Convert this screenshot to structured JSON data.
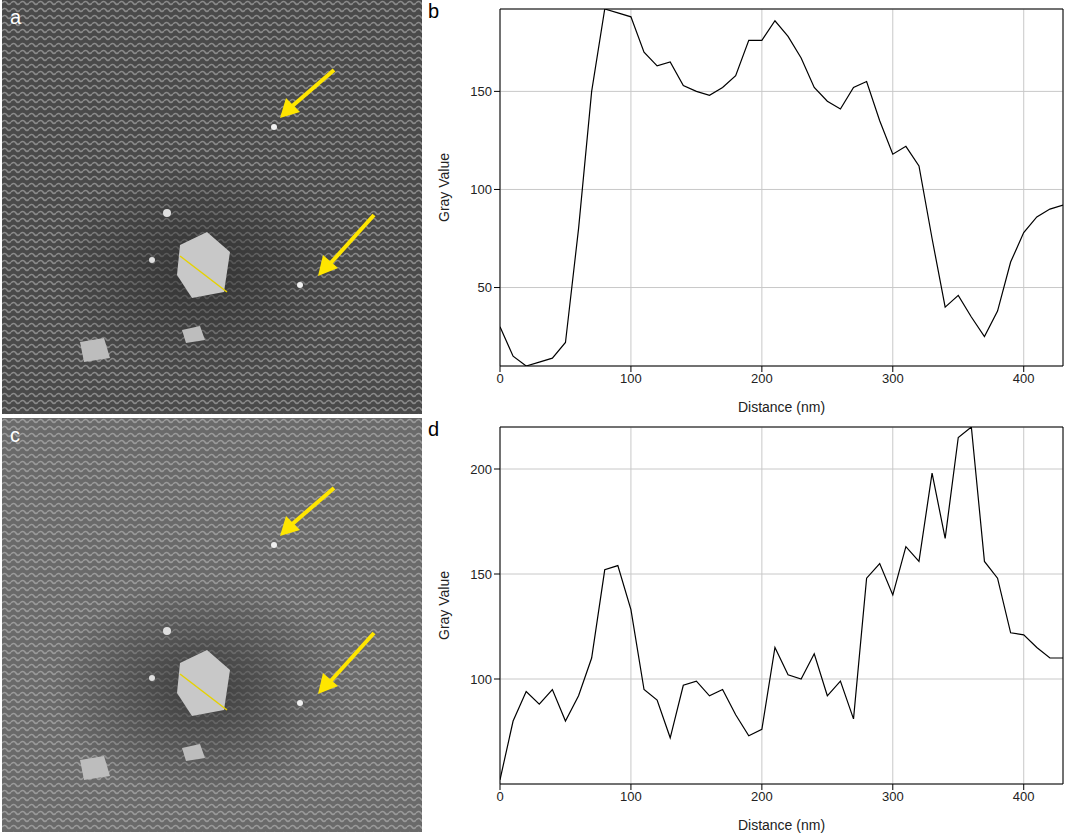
{
  "image_panels": [
    {
      "panel_label": "a"
    },
    {
      "panel_label": "c"
    }
  ],
  "chart_data": [
    {
      "panel_label": "b",
      "type": "line",
      "x_label": "Distance (nm)",
      "y_label": "Gray Value",
      "x": [
        0,
        10,
        20,
        30,
        40,
        50,
        60,
        70,
        80,
        90,
        100,
        110,
        120,
        130,
        140,
        150,
        160,
        170,
        180,
        190,
        200,
        210,
        220,
        230,
        240,
        250,
        260,
        270,
        280,
        290,
        300,
        310,
        320,
        330,
        340,
        350,
        360,
        370,
        380,
        390,
        400,
        410,
        420,
        430
      ],
      "values": [
        30,
        15,
        10,
        12,
        14,
        22,
        80,
        150,
        192,
        190,
        188,
        170,
        163,
        165,
        153,
        150,
        148,
        152,
        158,
        176,
        176,
        186,
        178,
        167,
        152,
        145,
        141,
        152,
        155,
        135,
        118,
        122,
        112,
        75,
        40,
        46,
        35,
        25,
        38,
        63,
        78,
        86,
        90,
        92
      ],
      "color": "#000000",
      "xlim": [
        0,
        430
      ],
      "xticks": [
        0,
        100,
        200,
        300,
        400
      ],
      "ylim": [
        10,
        192
      ],
      "yticks": [
        50,
        100,
        150
      ],
      "grid": true
    },
    {
      "panel_label": "d",
      "type": "line",
      "x_label": "Distance (nm)",
      "y_label": "Gray Value",
      "x": [
        0,
        10,
        20,
        30,
        40,
        50,
        60,
        70,
        80,
        90,
        100,
        110,
        120,
        130,
        140,
        150,
        160,
        170,
        180,
        190,
        200,
        210,
        220,
        230,
        240,
        250,
        260,
        270,
        280,
        290,
        300,
        310,
        320,
        330,
        340,
        350,
        360,
        370,
        380,
        390,
        400,
        410,
        420,
        430
      ],
      "values": [
        52,
        80,
        94,
        88,
        95,
        80,
        92,
        110,
        152,
        154,
        133,
        95,
        90,
        72,
        97,
        99,
        92,
        95,
        83,
        73,
        76,
        115,
        102,
        100,
        112,
        92,
        99,
        81,
        148,
        155,
        140,
        163,
        156,
        198,
        167,
        215,
        220,
        156,
        148,
        122,
        121,
        115,
        110,
        110
      ],
      "color": "#000000",
      "xlim": [
        0,
        430
      ],
      "xticks": [
        0,
        100,
        200,
        300,
        400
      ],
      "ylim": [
        50,
        220
      ],
      "yticks": [
        100,
        150,
        200
      ],
      "grid": true
    }
  ]
}
